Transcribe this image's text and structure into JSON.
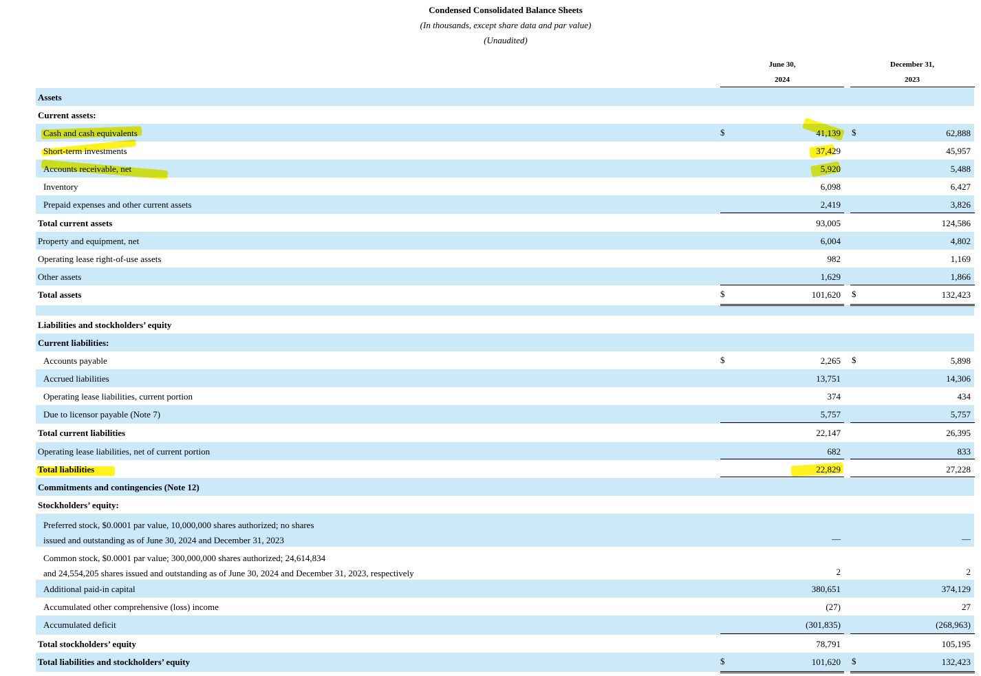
{
  "header": {
    "title": "Condensed Consolidated Balance Sheets",
    "subtitle": "(In thousands, except share data and par value)",
    "note": "(Unaudited)"
  },
  "columns": [
    {
      "line1": "June 30,",
      "line2": "2024"
    },
    {
      "line1": "December 31,",
      "line2": "2023"
    }
  ],
  "rows": [
    {
      "label": "Assets",
      "style": "bold",
      "c1": "",
      "c2": ""
    },
    {
      "label": "Current assets:",
      "style": "bold",
      "c1": "",
      "c2": ""
    },
    {
      "label": "Cash and cash equivalents",
      "style": "indent",
      "c1": "41,139",
      "c2": "62,888",
      "dollar": "$",
      "highlight": true
    },
    {
      "label": "Short-term investments",
      "style": "indent",
      "c1": "37,429",
      "c2": "45,957",
      "highlight": true
    },
    {
      "label": "Accounts receivable, net",
      "style": "indent",
      "c1": "5,920",
      "c2": "5,488",
      "highlight": true
    },
    {
      "label": "Inventory",
      "style": "indent",
      "c1": "6,098",
      "c2": "6,427"
    },
    {
      "label": "Prepaid expenses and other current assets",
      "style": "indent",
      "c1": "2,419",
      "c2": "3,826"
    },
    {
      "label": "Total current assets",
      "style": "bold",
      "c1": "93,005",
      "c2": "124,586"
    },
    {
      "label": "Property and equipment, net",
      "style": "plain",
      "c1": "6,004",
      "c2": "4,802"
    },
    {
      "label": "Operating lease right-of-use assets",
      "style": "plain",
      "c1": "982",
      "c2": "1,169"
    },
    {
      "label": "Other assets",
      "style": "plain",
      "c1": "1,629",
      "c2": "1,866"
    },
    {
      "label": "Total assets",
      "style": "bold",
      "c1": "101,620",
      "c2": "132,423",
      "dollar": "$"
    },
    {
      "label": "Liabilities and stockholders’ equity",
      "style": "bold",
      "c1": "",
      "c2": ""
    },
    {
      "label": "Current liabilities:",
      "style": "bold",
      "c1": "",
      "c2": ""
    },
    {
      "label": "Accounts payable",
      "style": "indent",
      "c1": "2,265",
      "c2": "5,898",
      "dollar": "$"
    },
    {
      "label": "Accrued liabilities",
      "style": "indent",
      "c1": "13,751",
      "c2": "14,306"
    },
    {
      "label": "Operating lease liabilities, current portion",
      "style": "indent",
      "c1": "374",
      "c2": "434"
    },
    {
      "label": "Due to licensor payable (Note 7)",
      "style": "indent",
      "c1": "5,757",
      "c2": "5,757"
    },
    {
      "label": "Total current liabilities",
      "style": "bold",
      "c1": "22,147",
      "c2": "26,395"
    },
    {
      "label": "Operating lease liabilities, net of current portion",
      "style": "plain",
      "c1": "682",
      "c2": "833"
    },
    {
      "label": "Total liabilities",
      "style": "bold",
      "c1": "22,829",
      "c2": "27,228",
      "highlight": true
    },
    {
      "label": "Commitments and contingencies (Note 12)",
      "style": "bold",
      "c1": "",
      "c2": ""
    },
    {
      "label": "Stockholders’ equity:",
      "style": "bold",
      "c1": "",
      "c2": ""
    },
    {
      "label": "Preferred stock, $0.0001 par value, 10,000,000 shares authorized; no shares",
      "label2": "issued and outstanding as of June 30, 2024 and December 31, 2023",
      "style": "indent",
      "c1": "—",
      "c2": "—"
    },
    {
      "label": "Common stock, $0.0001 par value; 300,000,000 shares authorized; 24,614,834",
      "label2": "and 24,554,205 shares issued and outstanding as of June 30, 2024 and December 31, 2023, respectively",
      "style": "indent",
      "c1": "2",
      "c2": "2"
    },
    {
      "label": "Additional paid-in capital",
      "style": "indent",
      "c1": "380,651",
      "c2": "374,129"
    },
    {
      "label": "Accumulated other comprehensive (loss) income",
      "style": "indent",
      "c1": "(27)",
      "c2": "27"
    },
    {
      "label": "Accumulated deficit",
      "style": "indent",
      "c1": "(301,835)",
      "c2": "(268,963)"
    },
    {
      "label": "Total stockholders’ equity",
      "style": "bold",
      "c1": "78,791",
      "c2": "105,195"
    },
    {
      "label": "Total liabilities and stockholders’ equity",
      "style": "bold",
      "c1": "101,620",
      "c2": "132,423",
      "dollar": "$"
    }
  ],
  "colors": {
    "row_shade": "#cce9fa",
    "highlight": "#fff000"
  }
}
